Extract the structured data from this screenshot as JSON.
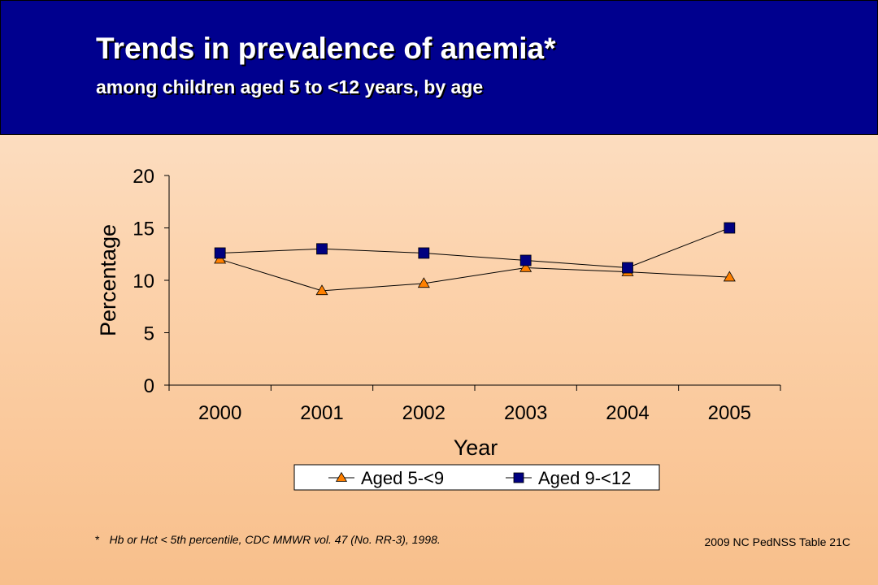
{
  "header": {
    "title": "Trends in prevalence of anemia*",
    "subtitle": "among children aged 5 to <12 years, by age"
  },
  "chart_data": {
    "type": "line",
    "x": [
      "2000",
      "2001",
      "2002",
      "2003",
      "2004",
      "2005"
    ],
    "xlabel": "Year",
    "ylabel": "Percentage",
    "ylim": [
      0,
      20
    ],
    "yticks": [
      "0",
      "5",
      "10",
      "15",
      "20"
    ],
    "grid": false,
    "legend_position": "bottom",
    "series": [
      {
        "name": "Aged 5-<9",
        "marker": "triangle",
        "color": "#ff8000",
        "values": [
          12.0,
          9.0,
          9.7,
          11.2,
          10.8,
          10.3
        ]
      },
      {
        "name": "Aged 9-<12",
        "marker": "square",
        "color": "#000080",
        "values": [
          12.6,
          13.0,
          12.6,
          11.9,
          11.2,
          15.0
        ]
      }
    ]
  },
  "footnote": {
    "marker": "*",
    "text": "Hb or Hct < 5th percentile, CDC MMWR vol. 47 (No. RR-3), 1998."
  },
  "source": "2009 NC PedNSS Table 21C"
}
